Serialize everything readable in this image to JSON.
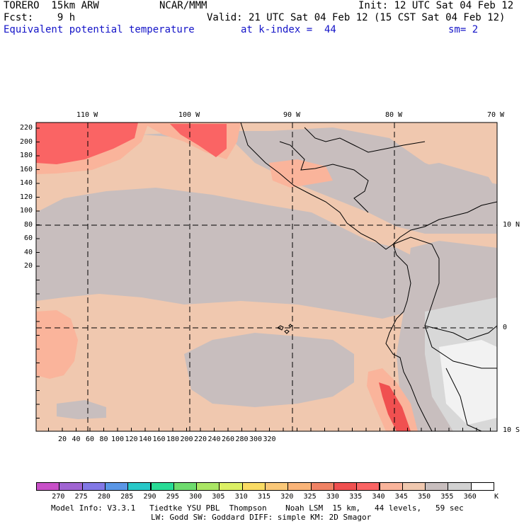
{
  "header": {
    "model": "TORERO  15km ARW",
    "center": "NCAR/MMM",
    "init": "Init: 12 UTC Sat 04 Feb 12",
    "fcst": "Fcst:    9 h",
    "valid": "Valid: 21 UTC Sat 04 Feb 12 (15 CST Sat 04 Feb 12)",
    "field": "Equivalent potential temperature",
    "level": "at k-index =  44",
    "smooth": "sm= 2"
  },
  "axes": {
    "lon_labels": [
      "110 W",
      "100 W",
      "90 W",
      "80 W",
      "70 W"
    ],
    "lat_labels": [
      "10 N",
      "0",
      "10 S"
    ],
    "y_ticks": [
      "220",
      "200",
      "180",
      "160",
      "140",
      "120",
      "100",
      "80",
      "60",
      "40",
      "20"
    ],
    "x_ticks": [
      "20",
      "40",
      "60",
      "80",
      "100",
      "120",
      "140",
      "160",
      "180",
      "200",
      "220",
      "240",
      "260",
      "280",
      "300",
      "320"
    ]
  },
  "colorbar": {
    "labels": [
      "270",
      "275",
      "280",
      "285",
      "290",
      "295",
      "300",
      "305",
      "310",
      "315",
      "320",
      "325",
      "330",
      "335",
      "340",
      "345",
      "350",
      "355",
      "360"
    ],
    "unit": "K",
    "colors": [
      "#c850c8",
      "#a064d2",
      "#8278e6",
      "#5a96e6",
      "#28c8c8",
      "#28dc96",
      "#6edc6e",
      "#aae664",
      "#dcf064",
      "#fadc64",
      "#fac878",
      "#fab478",
      "#f08264",
      "#f05050",
      "#fa6464",
      "#fab49b",
      "#f0c8af",
      "#c8bebe",
      "#d2d2d2",
      "#ffffff"
    ]
  },
  "footer": {
    "line1": "Model Info: V3.3.1   Tiedtke YSU PBL  Thompson    Noah LSM  15 km,   44 levels,   59 sec",
    "line2": "LW: Godd SW: Goddard DIFF: simple KM: 2D Smagor"
  }
}
